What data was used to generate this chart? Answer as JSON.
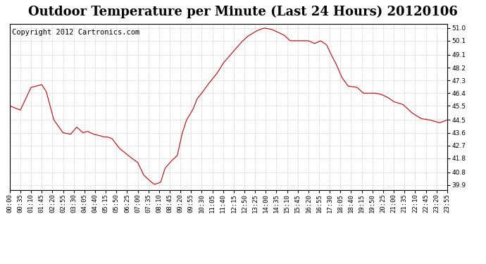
{
  "title": "Outdoor Temperature per Minute (Last 24 Hours) 20120106",
  "copyright": "Copyright 2012 Cartronics.com",
  "line_color": "#cc0000",
  "bg_color": "#ffffff",
  "grid_color": "#aaaaaa",
  "yticks": [
    39.9,
    40.8,
    41.8,
    42.7,
    43.6,
    44.5,
    45.5,
    46.4,
    47.3,
    48.2,
    49.1,
    50.1,
    51.0
  ],
  "ylim": [
    39.55,
    51.3
  ],
  "xlabel": "",
  "ylabel": "",
  "title_fontsize": 13,
  "copyright_fontsize": 7.5,
  "tick_fontsize": 6.5,
  "x_tick_labels": [
    "00:00",
    "00:35",
    "01:10",
    "01:45",
    "02:20",
    "02:55",
    "03:30",
    "04:05",
    "04:40",
    "05:15",
    "05:50",
    "06:25",
    "07:00",
    "07:35",
    "08:10",
    "08:45",
    "09:20",
    "09:55",
    "10:30",
    "11:05",
    "11:40",
    "12:15",
    "12:50",
    "13:25",
    "14:00",
    "14:35",
    "15:10",
    "15:45",
    "16:20",
    "16:55",
    "17:30",
    "18:05",
    "18:40",
    "19:15",
    "19:50",
    "20:25",
    "21:00",
    "21:35",
    "22:10",
    "22:45",
    "23:20",
    "23:55"
  ],
  "keypoints_x": [
    0,
    35,
    70,
    105,
    120,
    145,
    155,
    175,
    200,
    220,
    240,
    255,
    265,
    275,
    295,
    310,
    320,
    335,
    360,
    400,
    420,
    440,
    460,
    475,
    495,
    510,
    530,
    550,
    565,
    580,
    600,
    615,
    630,
    650,
    680,
    700,
    720,
    740,
    760,
    780,
    810,
    835,
    860,
    880,
    900,
    920,
    950,
    980,
    1000,
    1020,
    1040,
    1055,
    1070,
    1080,
    1090,
    1100,
    1110,
    1140,
    1160,
    1180,
    1200,
    1220,
    1240,
    1260,
    1290,
    1320,
    1350,
    1380,
    1410,
    1435
  ],
  "keypoints_y": [
    45.5,
    45.2,
    46.8,
    47.0,
    46.5,
    44.5,
    44.2,
    43.6,
    43.5,
    44.0,
    43.6,
    43.7,
    43.6,
    43.5,
    43.4,
    43.3,
    43.3,
    43.2,
    42.5,
    41.8,
    41.5,
    40.6,
    40.2,
    39.95,
    40.1,
    41.1,
    41.6,
    42.0,
    43.5,
    44.5,
    45.2,
    46.0,
    46.4,
    47.0,
    47.8,
    48.5,
    49.0,
    49.5,
    50.0,
    50.4,
    50.8,
    51.0,
    50.9,
    50.7,
    50.5,
    50.1,
    50.1,
    50.1,
    49.9,
    50.1,
    49.8,
    49.1,
    48.5,
    48.0,
    47.5,
    47.2,
    46.9,
    46.8,
    46.4,
    46.4,
    46.4,
    46.3,
    46.1,
    45.8,
    45.6,
    45.0,
    44.6,
    44.5,
    44.3,
    44.5
  ]
}
